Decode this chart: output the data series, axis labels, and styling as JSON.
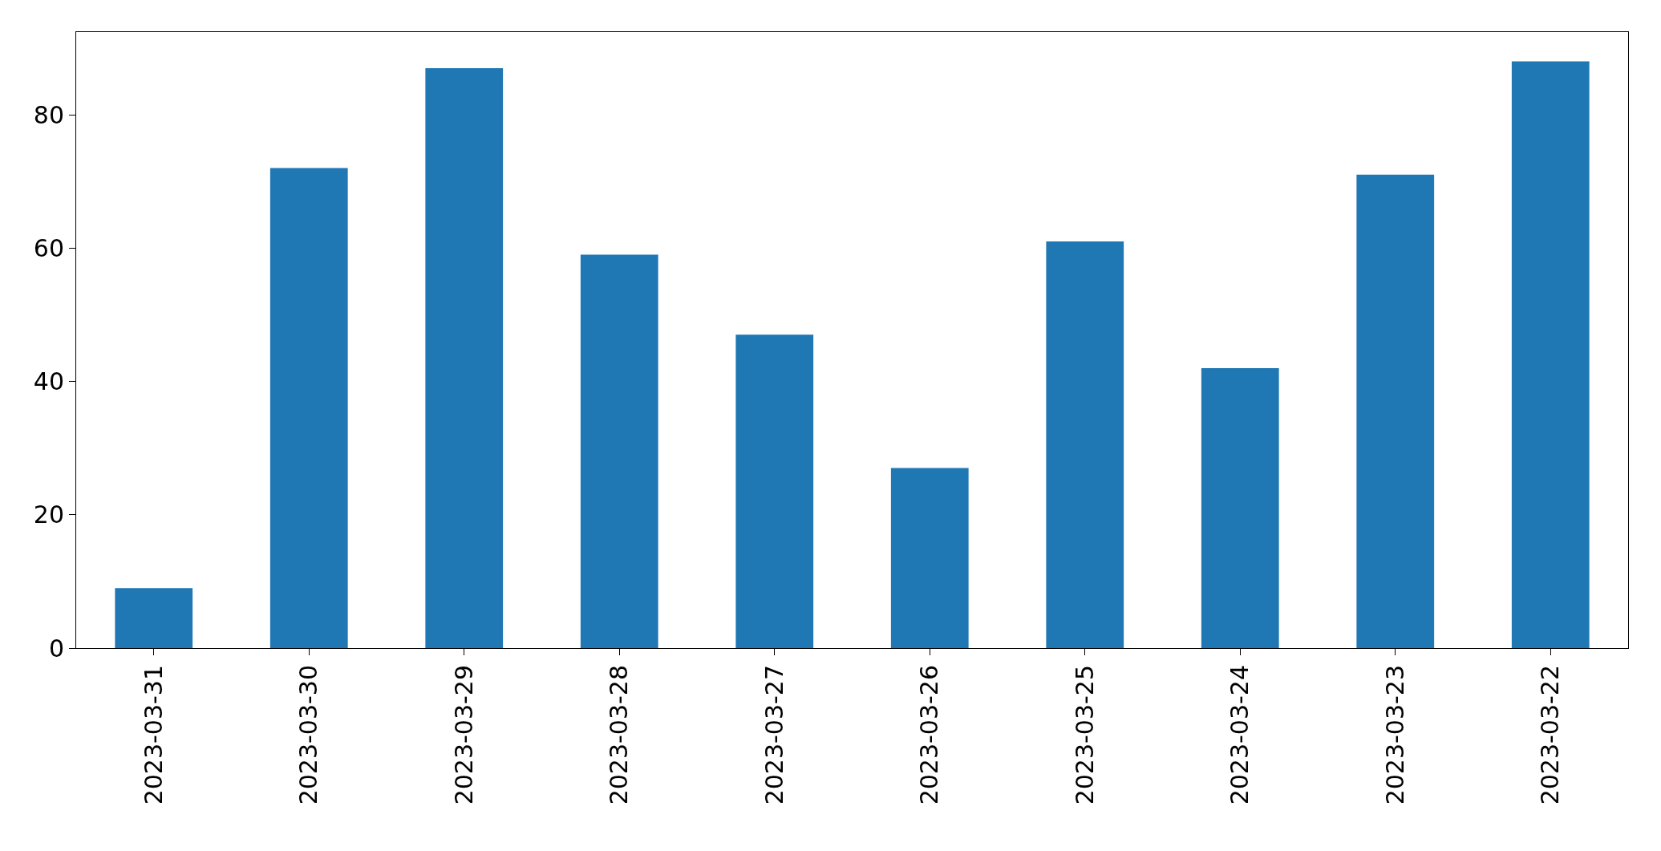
{
  "chart_data": {
    "type": "bar",
    "categories": [
      "2023-03-31",
      "2023-03-30",
      "2023-03-29",
      "2023-03-28",
      "2023-03-27",
      "2023-03-26",
      "2023-03-25",
      "2023-03-24",
      "2023-03-23",
      "2023-03-22"
    ],
    "values": [
      9,
      72,
      87,
      59,
      47,
      27,
      61,
      42,
      71,
      88
    ],
    "color": "#1f77b4",
    "ylim": [
      0,
      92.4
    ],
    "yticks": [
      0,
      20,
      40,
      60,
      80
    ]
  }
}
